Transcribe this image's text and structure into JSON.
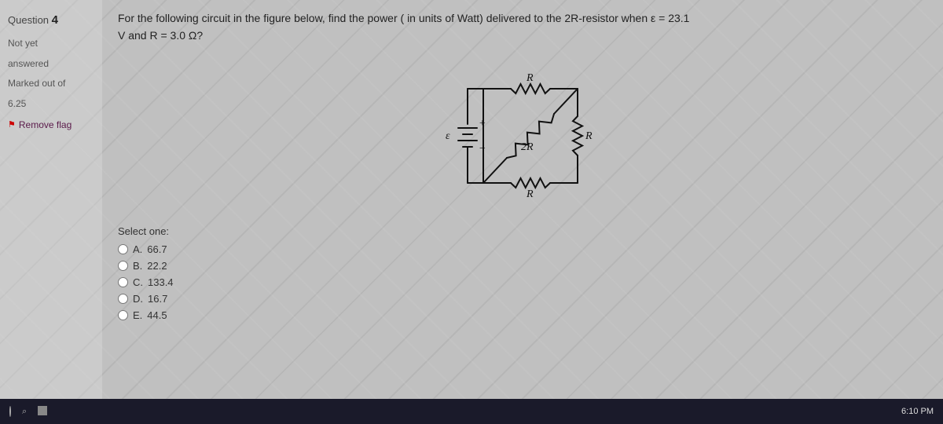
{
  "sidebar": {
    "question_label": "Question",
    "question_number": "4",
    "status_line1": "Not yet",
    "status_line2": "answered",
    "marked_label": "Marked out of",
    "marked_value": "6.25",
    "flag_text": "Remove flag"
  },
  "question": {
    "text_line1": "For the following circuit in the figure below, find the power ( in units of Watt) delivered to the 2R-resistor when ε = 23.1",
    "text_line2": "V and R = 3.0 Ω?"
  },
  "circuit": {
    "emf_label": "ε",
    "top_label": "R",
    "right_label": "R",
    "bottom_label": "R",
    "diag_label": "2R",
    "stroke": "#111111",
    "stroke_width": 2,
    "label_color": "#111111",
    "label_fontsize": 14
  },
  "options": {
    "select_label": "Select one:",
    "items": [
      {
        "letter": "A.",
        "value": "66.7"
      },
      {
        "letter": "B.",
        "value": "22.2"
      },
      {
        "letter": "C.",
        "value": "133.4"
      },
      {
        "letter": "D.",
        "value": "16.7"
      },
      {
        "letter": "E.",
        "value": "44.5"
      }
    ]
  },
  "taskbar": {
    "clock": "6:10 PM"
  },
  "colors": {
    "page_bg": "#c0c0c0",
    "sidebar_text": "#555555",
    "question_text": "#222222",
    "flag_red": "#cc0000",
    "taskbar_bg": "#1a1a2a"
  }
}
